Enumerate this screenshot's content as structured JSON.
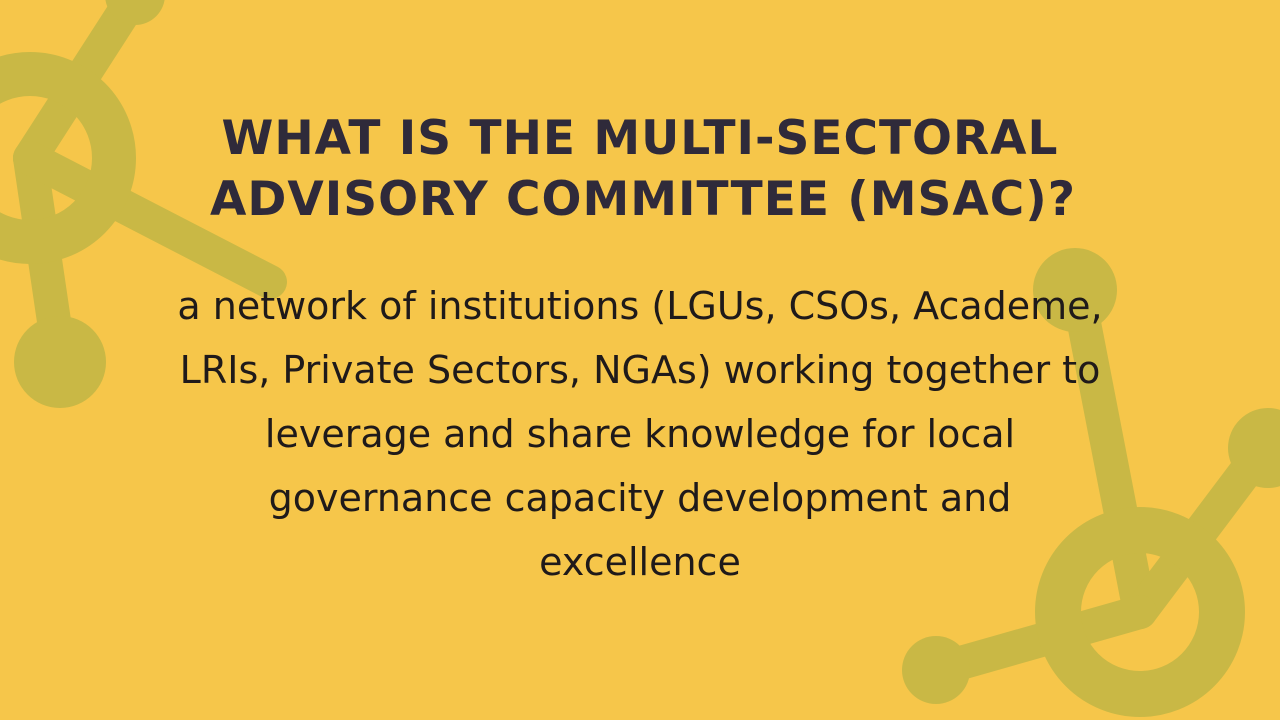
{
  "slide": {
    "title_lines": [
      "WHAT IS THE MULTI-SECTORAL",
      "ADVISORY COMMITTEE (MSAC)?"
    ],
    "body_lines": [
      "a network of institutions (LGUs, CSOs, Academe,",
      "LRIs, Private Sectors, NGAs) working together to",
      "leverage and share knowledge for local",
      "governance capacity development and",
      "excellence"
    ]
  },
  "colors": {
    "background": "#F6C64A",
    "decor": "#C9B845",
    "title": "#2F2A3A",
    "body": "#1F1A1A"
  },
  "decor": {
    "icon_top_left": "network-node-icon",
    "icon_bottom_right": "network-node-icon"
  }
}
